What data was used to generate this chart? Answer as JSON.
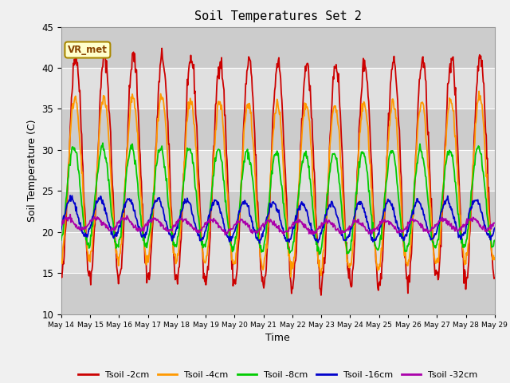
{
  "title": "Soil Temperatures Set 2",
  "xlabel": "Time",
  "ylabel": "Soil Temperature (C)",
  "ylim": [
    10,
    45
  ],
  "yticks": [
    10,
    15,
    20,
    25,
    30,
    35,
    40,
    45
  ],
  "x_tick_labels": [
    "May 14",
    "May 15",
    "May 16",
    "May 17",
    "May 18",
    "May 19",
    "May 20",
    "May 21",
    "May 22",
    "May 23",
    "May 24",
    "May 25",
    "May 26",
    "May 27",
    "May 28",
    "May 29"
  ],
  "fig_bg_color": "#f0f0f0",
  "plot_bg_color": "#d8d8d8",
  "stripe_color_dark": "#cccccc",
  "stripe_color_light": "#e0e0e0",
  "legend_label": "VR_met",
  "legend_box_facecolor": "#ffffcc",
  "legend_box_edgecolor": "#aa8800",
  "legend_text_color": "#884400",
  "series": [
    {
      "label": "Tsoil -2cm",
      "color": "#cc0000"
    },
    {
      "label": "Tsoil -4cm",
      "color": "#ff9900"
    },
    {
      "label": "Tsoil -8cm",
      "color": "#00cc00"
    },
    {
      "label": "Tsoil -16cm",
      "color": "#0000cc"
    },
    {
      "label": "Tsoil -32cm",
      "color": "#aa00aa"
    }
  ],
  "n_days": 15,
  "pts_per_day": 48
}
